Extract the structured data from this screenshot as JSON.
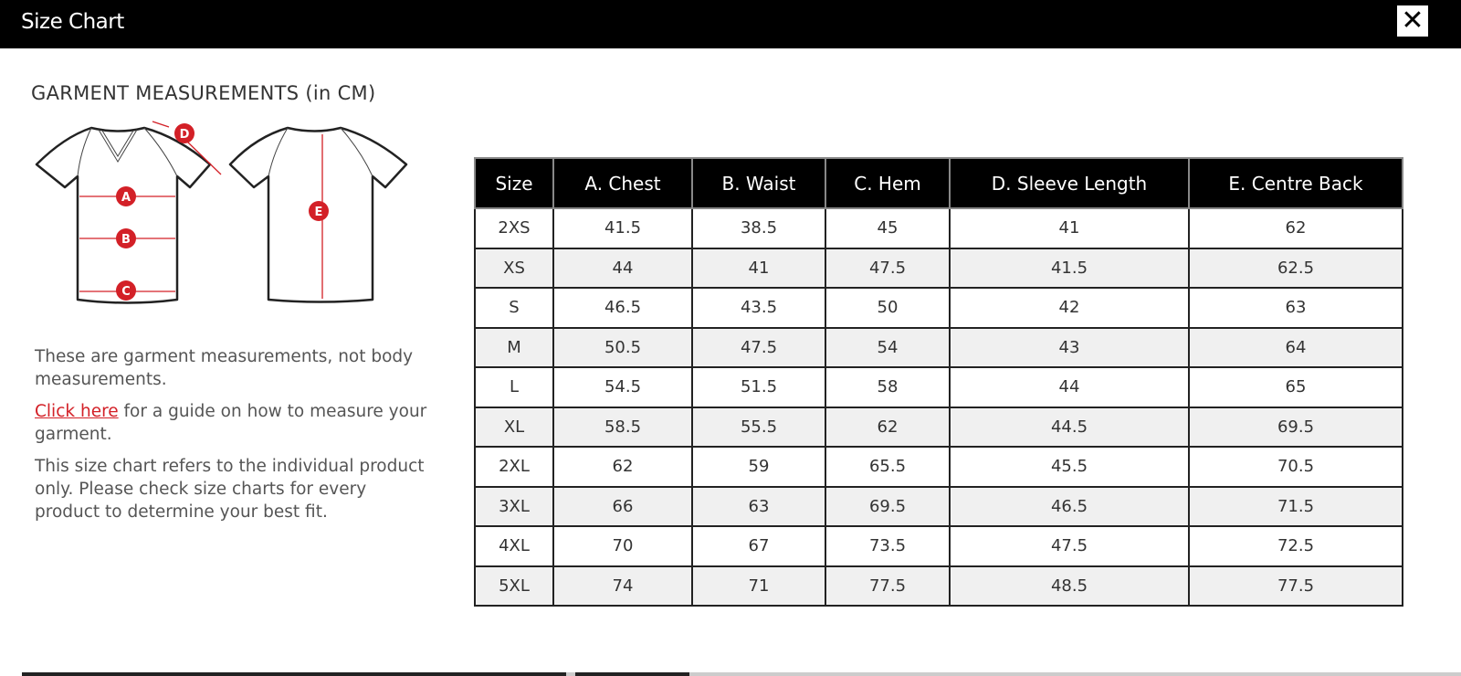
{
  "header": {
    "title": "Size Chart",
    "close_icon": "close-icon"
  },
  "left": {
    "heading": "GARMENT MEASUREMENTS (in CM)",
    "diagram_labels": [
      "A",
      "B",
      "C",
      "D",
      "E"
    ],
    "note1": "These are garment measurements, not body measurements.",
    "link": "Click here",
    "note2_rest": " for a guide on how to measure your garment.",
    "note3": "This size chart refers to the individual product only. Please check size charts for every product to determine your best fit."
  },
  "colors": {
    "accent": "#d32027",
    "header_bg": "#000000",
    "alt_row": "#f0f0f0"
  },
  "table": {
    "columns": [
      "Size",
      "A. Chest",
      "B. Waist",
      "C. Hem",
      "D. Sleeve Length",
      "E. Centre Back"
    ],
    "rows": [
      [
        "2XS",
        "41.5",
        "38.5",
        "45",
        "41",
        "62"
      ],
      [
        "XS",
        "44",
        "41",
        "47.5",
        "41.5",
        "62.5"
      ],
      [
        "S",
        "46.5",
        "43.5",
        "50",
        "42",
        "63"
      ],
      [
        "M",
        "50.5",
        "47.5",
        "54",
        "43",
        "64"
      ],
      [
        "L",
        "54.5",
        "51.5",
        "58",
        "44",
        "65"
      ],
      [
        "XL",
        "58.5",
        "55.5",
        "62",
        "44.5",
        "69.5"
      ],
      [
        "2XL",
        "62",
        "59",
        "65.5",
        "45.5",
        "70.5"
      ],
      [
        "3XL",
        "66",
        "63",
        "69.5",
        "46.5",
        "71.5"
      ],
      [
        "4XL",
        "70",
        "67",
        "73.5",
        "47.5",
        "72.5"
      ],
      [
        "5XL",
        "74",
        "71",
        "77.5",
        "48.5",
        "77.5"
      ]
    ]
  }
}
